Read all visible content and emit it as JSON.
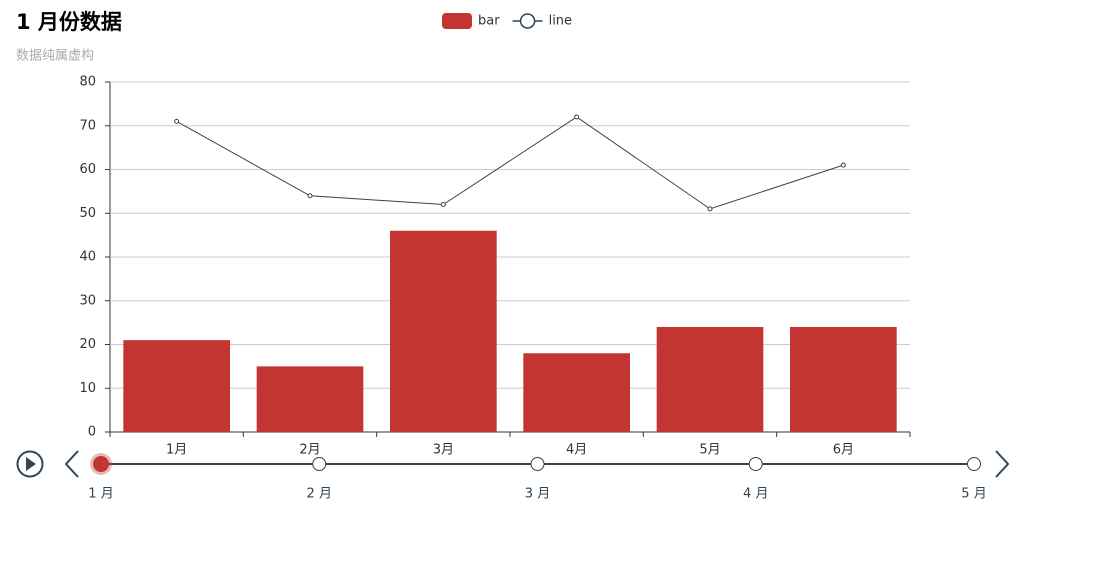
{
  "chart_data": {
    "type": "bar",
    "title": "1 月份数据",
    "subtitle": "数据纯属虚构",
    "categories": [
      "1月",
      "2月",
      "3月",
      "4月",
      "5月",
      "6月"
    ],
    "series": [
      {
        "name": "bar",
        "type": "bar",
        "color": "#c23531",
        "values": [
          21,
          15,
          46,
          18,
          24,
          24
        ]
      },
      {
        "name": "line",
        "type": "line",
        "color": "#2f4554",
        "values": [
          71,
          54,
          52,
          72,
          51,
          61
        ]
      }
    ],
    "ylim": [
      0,
      80
    ],
    "yticks": [
      0,
      10,
      20,
      30,
      40,
      50,
      60,
      70,
      80
    ],
    "grid": true,
    "timeline": {
      "labels": [
        "1 月",
        "2 月",
        "3 月",
        "4 月",
        "5 月"
      ],
      "current": 0
    }
  }
}
